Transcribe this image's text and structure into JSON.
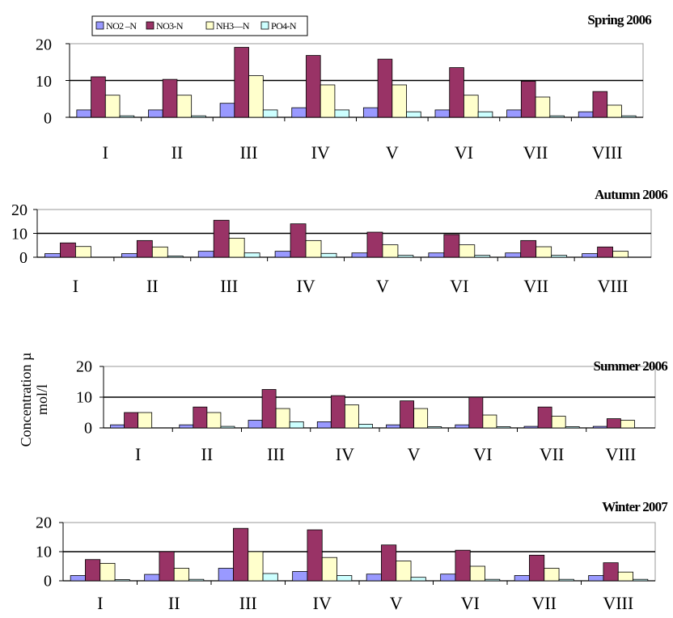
{
  "colors": {
    "NO2-N": "#9999ff",
    "NO3-N": "#993366",
    "NH3-N": "#ffffcc",
    "PO4-N": "#ccffff"
  },
  "legend": {
    "placement": "top-left",
    "items": [
      "NO2 –N",
      "NO3-N",
      "NH3—N",
      "PO4-N"
    ]
  },
  "y_axis_label": "Concentration µ mol/l",
  "chart_data": [
    {
      "type": "bar",
      "title": "Spring 2006",
      "categories": [
        "I",
        "II",
        "III",
        "IV",
        "V",
        "VI",
        "VII",
        "VIII"
      ],
      "ylim": [
        0,
        20
      ],
      "yticks": [
        "0",
        "10",
        "20"
      ],
      "grid": "major horizontal",
      "series": [
        {
          "name": "NO2 –N",
          "values": [
            2,
            2,
            3.8,
            2.6,
            2.6,
            2,
            2,
            1.5
          ]
        },
        {
          "name": "NO3-N",
          "values": [
            11,
            10.3,
            19,
            16.8,
            15.8,
            13.5,
            9.8,
            7
          ]
        },
        {
          "name": "NH3—N",
          "values": [
            6,
            6,
            11.3,
            8.8,
            8.8,
            6,
            5.5,
            3.3
          ]
        },
        {
          "name": "PO4-N",
          "values": [
            0.4,
            0.4,
            2,
            2,
            1.5,
            1.5,
            0.4,
            0.4
          ]
        }
      ]
    },
    {
      "type": "bar",
      "title": "Autumn 2006",
      "categories": [
        "I",
        "II",
        "III",
        "IV",
        "V",
        "VI",
        "VII",
        "VIII"
      ],
      "ylim": [
        0,
        20
      ],
      "yticks": [
        "0",
        "10",
        "20"
      ],
      "grid": "major horizontal",
      "series": [
        {
          "name": "NO2 –N",
          "values": [
            1.5,
            1.5,
            2.5,
            2.5,
            1.8,
            1.8,
            1.8,
            1.5
          ]
        },
        {
          "name": "NO3-N",
          "values": [
            6,
            7,
            15.5,
            14,
            10.5,
            9.5,
            7,
            4.3
          ]
        },
        {
          "name": "NH3—N",
          "values": [
            4.5,
            4.3,
            8,
            7,
            5.2,
            5.2,
            4.4,
            2.5
          ]
        },
        {
          "name": "PO4-N",
          "values": [
            0,
            0.5,
            1.8,
            1.6,
            0.8,
            0.8,
            0.8,
            0
          ]
        }
      ]
    },
    {
      "type": "bar",
      "title": "Summer 2006",
      "categories": [
        "I",
        "II",
        "III",
        "IV",
        "V",
        "VI",
        "VII",
        "VIII"
      ],
      "ylim": [
        0,
        20
      ],
      "yticks": [
        "0",
        "10",
        "20"
      ],
      "grid": "major horizontal",
      "series": [
        {
          "name": "NO2 –N",
          "values": [
            1,
            1,
            2.5,
            2,
            1,
            1,
            0.5,
            0.5
          ]
        },
        {
          "name": "NO3-N",
          "values": [
            5,
            6.8,
            12.5,
            10.5,
            8.8,
            10,
            6.8,
            3
          ]
        },
        {
          "name": "NH3—N",
          "values": [
            5,
            5,
            6.3,
            7.5,
            6.3,
            4.2,
            3.8,
            2.5
          ]
        },
        {
          "name": "PO4-N",
          "values": [
            0,
            0.5,
            2,
            1.2,
            0.4,
            0.4,
            0.4,
            0
          ]
        }
      ]
    },
    {
      "type": "bar",
      "title": "Winter 2007",
      "categories": [
        "I",
        "II",
        "III",
        "IV",
        "V",
        "VI",
        "VII",
        "VIII"
      ],
      "ylim": [
        0,
        20
      ],
      "yticks": [
        "0",
        "10",
        "20"
      ],
      "grid": "major horizontal",
      "series": [
        {
          "name": "NO2 –N",
          "values": [
            1.8,
            2.2,
            4.3,
            3.2,
            2.3,
            2.3,
            1.8,
            1.8
          ]
        },
        {
          "name": "NO3-N",
          "values": [
            7.3,
            10,
            18,
            17.5,
            12.3,
            10.5,
            8.8,
            6.2
          ]
        },
        {
          "name": "NH3—N",
          "values": [
            6,
            4.3,
            10,
            8,
            6.8,
            5,
            4.3,
            3
          ]
        },
        {
          "name": "PO4-N",
          "values": [
            0.4,
            0.5,
            2.5,
            1.8,
            1.2,
            0.5,
            0.5,
            0.5
          ]
        }
      ]
    }
  ]
}
